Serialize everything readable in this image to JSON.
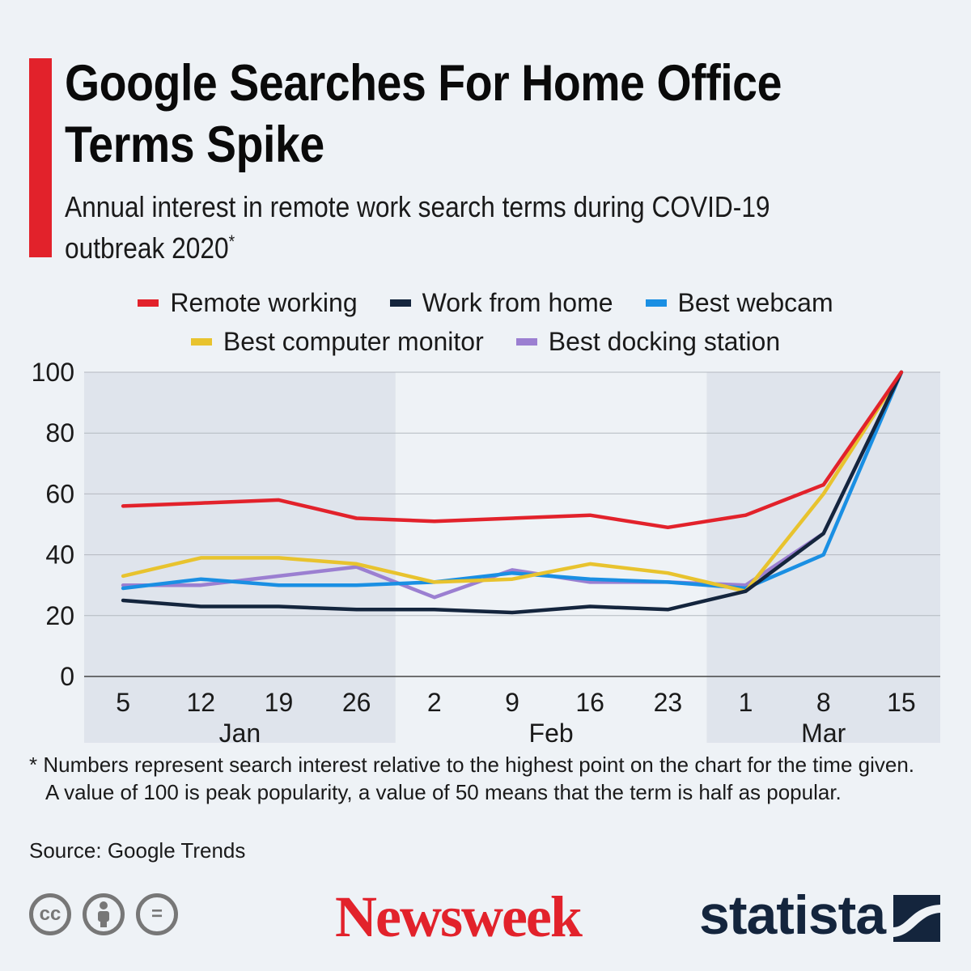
{
  "title": "Google Searches For Home Office Terms Spike",
  "subtitle": "Annual interest in remote work search terms during COVID-19 outbreak 2020",
  "subtitle_mark": "*",
  "legend": [
    {
      "label": "Remote working",
      "color": "#e2222b"
    },
    {
      "label": "Work from home",
      "color": "#14253d"
    },
    {
      "label": "Best webcam",
      "color": "#1a8fe3"
    },
    {
      "label": "Best computer monitor",
      "color": "#e8c32e"
    },
    {
      "label": "Best docking station",
      "color": "#9b7fd1"
    }
  ],
  "chart_data": {
    "type": "line",
    "title": "Google Searches For Home Office Terms Spike",
    "x": [
      "5",
      "12",
      "19",
      "26",
      "2",
      "9",
      "16",
      "23",
      "1",
      "8",
      "15"
    ],
    "month_groups": [
      {
        "label": "Jan",
        "start": 0,
        "end": 3,
        "shaded": true
      },
      {
        "label": "Feb",
        "start": 4,
        "end": 7,
        "shaded": false
      },
      {
        "label": "Mar",
        "start": 8,
        "end": 10,
        "shaded": true
      }
    ],
    "ylim": [
      0,
      100
    ],
    "yticks": [
      0,
      20,
      40,
      60,
      80,
      100
    ],
    "grid": true,
    "series": [
      {
        "name": "Best docking station",
        "color": "#9b7fd1",
        "values": [
          30,
          30,
          33,
          36,
          26,
          35,
          31,
          31,
          30,
          47,
          100
        ]
      },
      {
        "name": "Best webcam",
        "color": "#1a8fe3",
        "values": [
          29,
          32,
          30,
          30,
          31,
          34,
          32,
          31,
          29,
          40,
          100
        ]
      },
      {
        "name": "Best computer monitor",
        "color": "#e8c32e",
        "values": [
          33,
          39,
          39,
          37,
          31,
          32,
          37,
          34,
          28,
          60,
          100
        ]
      },
      {
        "name": "Work from home",
        "color": "#14253d",
        "values": [
          25,
          23,
          23,
          22,
          22,
          21,
          23,
          22,
          28,
          47,
          100
        ]
      },
      {
        "name": "Remote working",
        "color": "#e2222b",
        "values": [
          56,
          57,
          58,
          52,
          51,
          52,
          53,
          49,
          53,
          63,
          100
        ]
      }
    ]
  },
  "footnote": "* Numbers represent search interest relative to the highest point on the chart for the time given. A value of 100 is peak popularity, a value of 50 means that the term is half as popular.",
  "source": "Source: Google Trends",
  "license_icons": [
    {
      "name": "cc-icon",
      "text": "cc"
    },
    {
      "name": "attribution-icon",
      "text": ""
    },
    {
      "name": "no-derivatives-icon",
      "text": "="
    }
  ],
  "logos": {
    "newsweek": "Newsweek",
    "statista": "statista"
  },
  "colors": {
    "accent": "#e2222b",
    "background": "#eef2f6",
    "shade": "#dfe4ec",
    "brand_dark": "#14253d"
  }
}
